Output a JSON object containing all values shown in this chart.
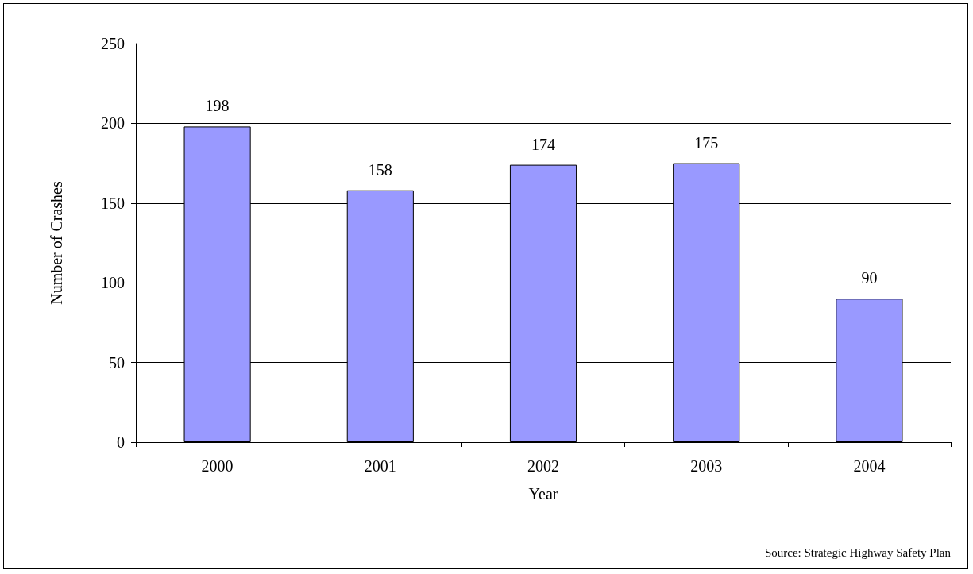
{
  "chart_data": {
    "type": "bar",
    "xlabel": "Year",
    "ylabel": "Number of Crashes",
    "categories": [
      "2000",
      "2001",
      "2002",
      "2003",
      "2004"
    ],
    "values": [
      198,
      158,
      174,
      175,
      90
    ],
    "color": "#9999ff",
    "ylim": [
      0,
      250
    ],
    "yticks": [
      0,
      50,
      100,
      150,
      200,
      250
    ],
    "grid": "y",
    "data_labels": true,
    "annotations": [
      "Source: Strategic Highway Safety Plan"
    ]
  }
}
